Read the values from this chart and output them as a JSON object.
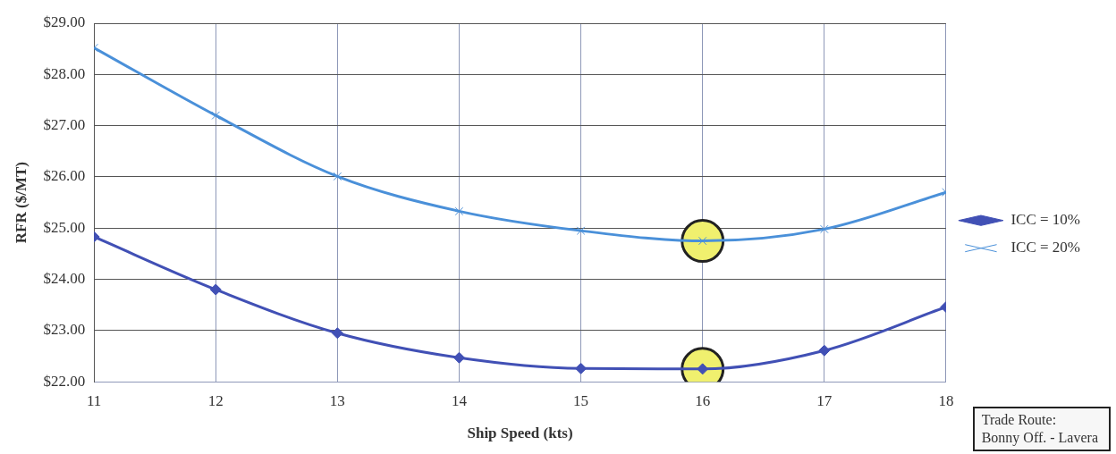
{
  "chart_data": {
    "type": "line",
    "xlabel": "Ship Speed (kts)",
    "ylabel": "RFR ($/MT)",
    "x": [
      11,
      12,
      13,
      14,
      15,
      16,
      17,
      18
    ],
    "series": [
      {
        "name": "ICC = 10%",
        "color": "#4150b5",
        "marker": "diamond",
        "values": [
          24.83,
          23.8,
          22.95,
          22.47,
          22.26,
          22.25,
          22.61,
          23.46
        ]
      },
      {
        "name": "ICC = 20%",
        "color": "#4a90d9",
        "marker": "cross",
        "values": [
          28.52,
          27.2,
          26.01,
          25.33,
          24.95,
          24.75,
          24.98,
          25.7
        ]
      },
      {
        "type": "scatter",
        "color": "#f0f06e",
        "marker": "circle",
        "x": [
          16,
          16
        ],
        "values": [
          22.25,
          24.75
        ]
      }
    ],
    "xlim": [
      11,
      18
    ],
    "xticks": [
      11,
      12,
      13,
      14,
      15,
      16,
      17,
      18
    ],
    "ylim": [
      22,
      29
    ],
    "yticks": [
      {
        "value": 22,
        "label": "$22.00"
      },
      {
        "value": 23,
        "label": "$23.00"
      },
      {
        "value": 24,
        "label": "$24.00"
      },
      {
        "value": 25,
        "label": "$25.00"
      },
      {
        "value": 26,
        "label": "$26.00"
      },
      {
        "value": 27,
        "label": "$27.00"
      },
      {
        "value": 28,
        "label": "$28.00"
      },
      {
        "value": 29,
        "label": "$29.00"
      }
    ],
    "grid": true,
    "legend": "right",
    "annotations": [
      "Trade Route:\nBonny Off. - Lavera"
    ]
  }
}
